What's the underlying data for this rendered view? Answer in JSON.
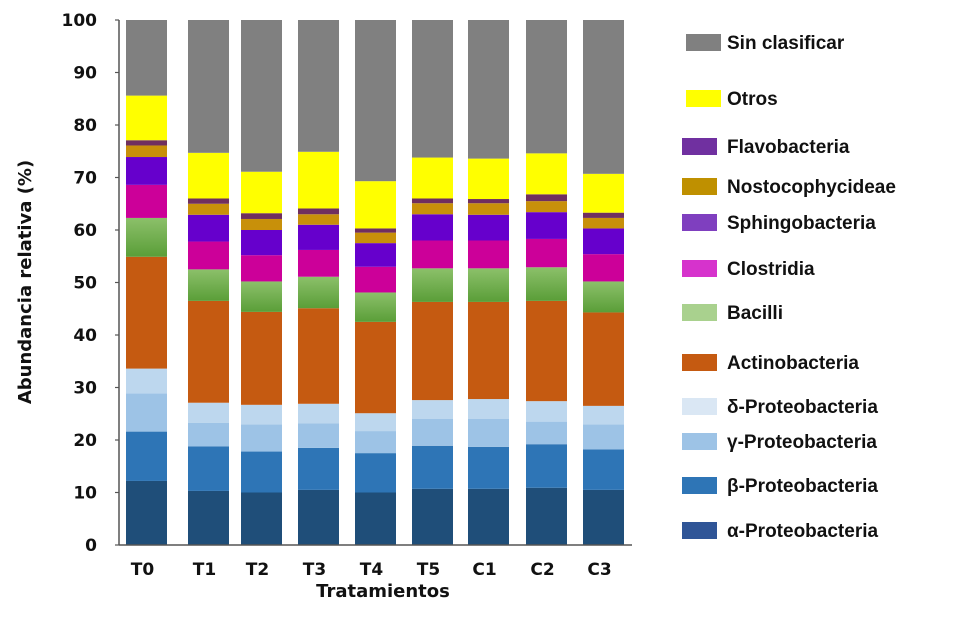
{
  "chart_data": {
    "type": "bar",
    "stacked": true,
    "title": "",
    "xlabel": "Tratamientos",
    "ylabel": "Abundancia  relativa (%)",
    "ylim": [
      0,
      100
    ],
    "yticks": [
      0,
      10,
      20,
      30,
      40,
      50,
      60,
      70,
      80,
      90,
      100
    ],
    "grid": false,
    "legend_position": "right",
    "categories": [
      "T0",
      "T1",
      "T2",
      "T3",
      "T4",
      "T5",
      "C1",
      "C2",
      "C3"
    ],
    "series": [
      {
        "name": "α-Proteobacteria",
        "color": "#1F4E79",
        "legend_color": "#2F5597",
        "values": [
          12.2,
          10.3,
          10.0,
          10.5,
          10.0,
          10.7,
          10.7,
          10.9,
          10.5
        ]
      },
      {
        "name": "β-Proteobacteria",
        "color": "#2E75B6",
        "legend_color": "#2E75B6",
        "values": [
          9.4,
          8.5,
          7.8,
          8.0,
          7.5,
          8.2,
          8.0,
          8.3,
          7.7
        ]
      },
      {
        "name": "γ-Proteobacteria",
        "color": "#9DC3E6",
        "legend_color": "#9DC3E6",
        "values": [
          7.3,
          4.5,
          5.2,
          4.7,
          4.2,
          5.1,
          5.3,
          4.3,
          4.8
        ]
      },
      {
        "name": "δ-Proteobacteria",
        "color": "#BDD7EE",
        "legend_color": "#DAE7F4",
        "values": [
          4.7,
          3.8,
          3.7,
          3.7,
          3.4,
          3.6,
          3.8,
          3.9,
          3.5
        ]
      },
      {
        "name": "Actinobacteria",
        "color": "#C55A11",
        "legend_color": "#C55A11",
        "values": [
          21.3,
          19.4,
          17.7,
          18.2,
          17.4,
          18.7,
          18.5,
          19.1,
          17.8
        ]
      },
      {
        "name": "Bacilli",
        "color": "#6FAE4A",
        "legend_color": "#A9D18E",
        "values": [
          7.4,
          6.0,
          5.8,
          6.0,
          5.6,
          6.4,
          6.4,
          6.4,
          5.9
        ]
      },
      {
        "name": "Clostridia",
        "color": "#CC0099",
        "legend_color": "#D633CC",
        "values": [
          6.3,
          5.3,
          5.0,
          5.1,
          4.9,
          5.3,
          5.3,
          5.4,
          5.2
        ]
      },
      {
        "name": "Sphingobacteria",
        "color": "#6600CC",
        "legend_color": "#7F3FBF",
        "values": [
          5.3,
          5.1,
          4.8,
          4.8,
          4.5,
          5.0,
          4.9,
          5.1,
          4.9
        ]
      },
      {
        "name": "Nostocophycideae",
        "color": "#C8900A",
        "legend_color": "#BF9000",
        "values": [
          2.2,
          2.1,
          2.1,
          2.0,
          2.0,
          2.1,
          2.2,
          2.1,
          2.0
        ]
      },
      {
        "name": "Flavobacteria",
        "color": "#702F5F",
        "legend_color": "#7030A0",
        "values": [
          1.0,
          1.0,
          1.1,
          1.1,
          0.8,
          0.9,
          0.8,
          1.3,
          1.0
        ]
      },
      {
        "name": "Otros",
        "color": "#FFFF00",
        "legend_color": "#FFFF00",
        "values": [
          8.5,
          8.7,
          7.9,
          10.8,
          9.0,
          7.8,
          7.7,
          7.8,
          7.4
        ]
      },
      {
        "name": "Sin clasificar",
        "color": "#808080",
        "legend_color": "#808080",
        "values": [
          14.4,
          25.3,
          28.9,
          25.1,
          30.7,
          26.2,
          26.4,
          25.4,
          29.3
        ]
      }
    ],
    "legend_order": [
      "Sin clasificar",
      "Otros",
      "Flavobacteria",
      "Nostocophycideae",
      "Sphingobacteria",
      "Clostridia",
      "Bacilli",
      "Actinobacteria",
      "δ-Proteobacteria",
      "γ-Proteobacteria",
      "β-Proteobacteria",
      "α-Proteobacteria"
    ]
  }
}
